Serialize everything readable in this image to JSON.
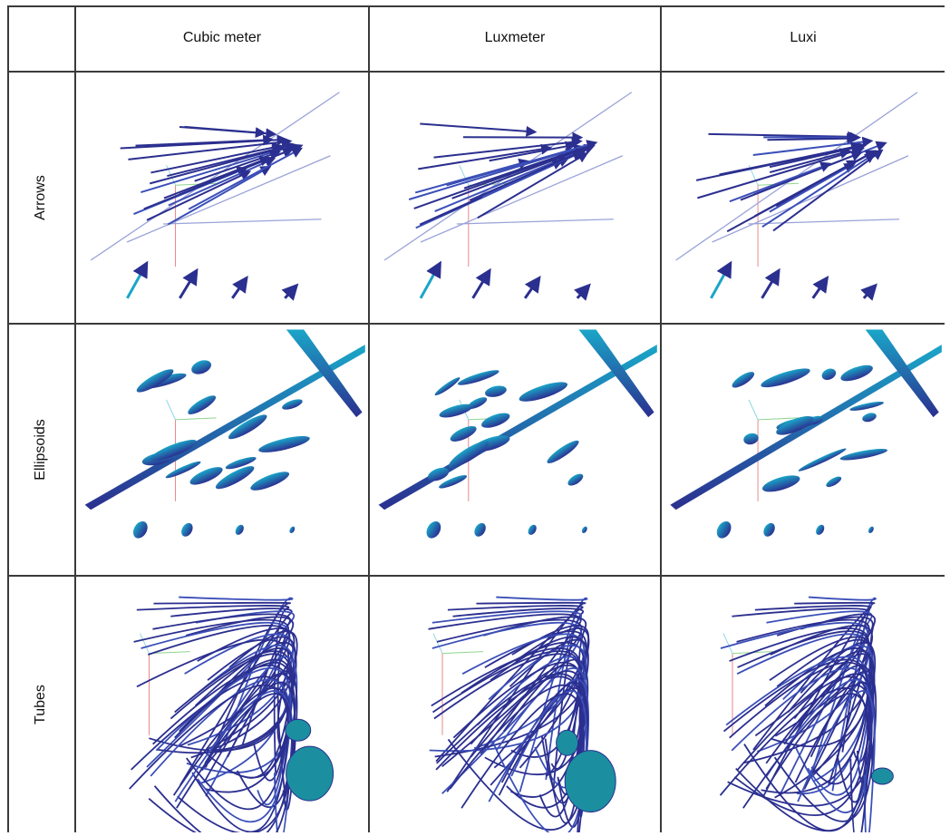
{
  "columns": [
    "Cubic meter",
    "Luxmeter",
    "Luxi"
  ],
  "rows": [
    "Arrows",
    "Ellipsoids",
    "Tubes"
  ],
  "colors": {
    "glyph_dark": "#2b2f8f",
    "glyph_mid": "#3b4fb8",
    "glyph_cyan": "#1aa6c8",
    "glyph_teal": "#1b8fa0",
    "axis_red": "#e88a8a",
    "axis_green": "#8fd48f",
    "axis_cyan": "#8fd8e6",
    "grid_line": "#3a3a3a"
  },
  "icons": [
    "arrow-glyph",
    "ellipsoid-glyph",
    "tube-glyph"
  ]
}
